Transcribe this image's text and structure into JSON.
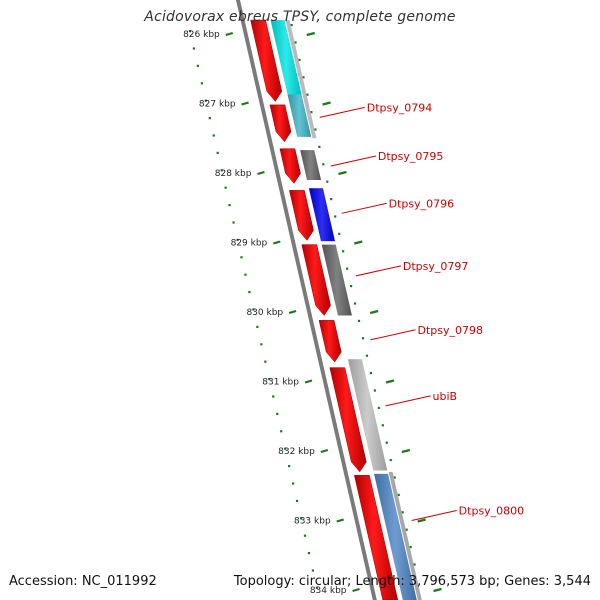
{
  "title": "Acidovorax ebreus TPSY, complete genome",
  "accession": "Accession: NC_011992",
  "summary": "Topology: circular; Length: 3,796,573 bp; Genes: 3,544",
  "colors": {
    "forward_gene": "#ff0000",
    "cyan_feature": "#00e5e5",
    "blue_feature": "#0000ee",
    "steel_blue_feature": "#4f86c6",
    "gray_dark": "#666666",
    "gray_light": "#c0c0c0",
    "backbone": "#7a7a7a",
    "tick_marks": "#1a7a1a",
    "label_text": "#cc0000",
    "kbp_text": "#222222"
  },
  "axis": {
    "unit": "kbp",
    "ticks": [
      {
        "kbp": 826,
        "label": "826 kbp"
      },
      {
        "kbp": 827,
        "label": "827 kbp"
      },
      {
        "kbp": 828,
        "label": "828 kbp"
      },
      {
        "kbp": 829,
        "label": "829 kbp"
      },
      {
        "kbp": 830,
        "label": "830 kbp"
      },
      {
        "kbp": 831,
        "label": "831 kbp"
      },
      {
        "kbp": 832,
        "label": "832 kbp"
      },
      {
        "kbp": 833,
        "label": "833 kbp"
      },
      {
        "kbp": 834,
        "label": "834 kbp"
      }
    ]
  },
  "forward_genes": [
    {
      "start_kbp": 825.8,
      "end_kbp": 826.97,
      "arrow": true
    },
    {
      "start_kbp": 827.02,
      "end_kbp": 827.55,
      "arrow": true
    },
    {
      "start_kbp": 827.65,
      "end_kbp": 828.15,
      "arrow": true
    },
    {
      "start_kbp": 828.25,
      "end_kbp": 828.97,
      "arrow": true
    },
    {
      "start_kbp": 829.03,
      "end_kbp": 830.05,
      "arrow": true
    },
    {
      "start_kbp": 830.12,
      "end_kbp": 830.72,
      "arrow": true
    },
    {
      "start_kbp": 830.8,
      "end_kbp": 832.3,
      "arrow": true
    },
    {
      "start_kbp": 832.35,
      "end_kbp": 834.2,
      "arrow": false
    }
  ],
  "features": [
    {
      "start_kbp": 825.8,
      "end_kbp": 826.87,
      "color": "#00e5e5"
    },
    {
      "start_kbp": 826.87,
      "end_kbp": 827.48,
      "color": "#3fb6c8"
    },
    {
      "start_kbp": 827.67,
      "end_kbp": 828.1,
      "color": "#666666"
    },
    {
      "start_kbp": 828.22,
      "end_kbp": 828.98,
      "color": "#0000ee"
    },
    {
      "start_kbp": 829.03,
      "end_kbp": 830.05,
      "color": "#666666"
    },
    {
      "start_kbp": 830.68,
      "end_kbp": 832.28,
      "color": "#c0c0c0"
    },
    {
      "start_kbp": 832.33,
      "end_kbp": 834.2,
      "color": "#4f86c6"
    }
  ],
  "gene_labels": [
    {
      "name": "Dtpsy_0794",
      "kbp": 827.2
    },
    {
      "name": "Dtpsy_0795",
      "kbp": 827.9
    },
    {
      "name": "Dtpsy_0796",
      "kbp": 828.58
    },
    {
      "name": "Dtpsy_0797",
      "kbp": 829.48
    },
    {
      "name": "Dtpsy_0798",
      "kbp": 830.4
    },
    {
      "name": "ubiB",
      "kbp": 831.35
    },
    {
      "name": "Dtpsy_0800",
      "kbp": 833.0
    }
  ]
}
